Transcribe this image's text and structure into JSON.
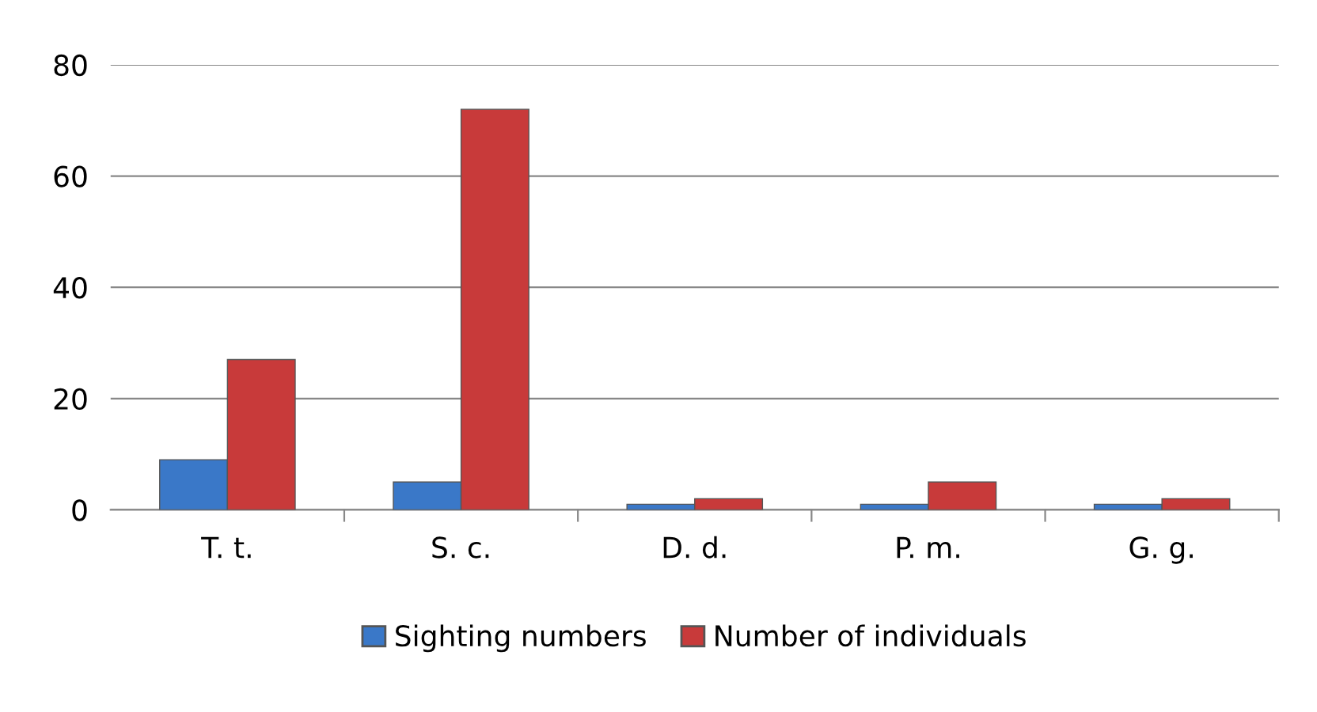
{
  "chart_data": {
    "type": "bar",
    "categories": [
      "T. t.",
      "S. c.",
      "D. d.",
      "P. m.",
      "G. g."
    ],
    "series": [
      {
        "name": "Sighting numbers",
        "color": "#3a78c8",
        "values": [
          9,
          5,
          1,
          1,
          1
        ]
      },
      {
        "name": "Number of individuals",
        "color": "#c83a3a",
        "values": [
          27,
          72,
          2,
          5,
          2
        ]
      }
    ],
    "ylim": [
      0,
      80
    ],
    "yticks": [
      0,
      20,
      40,
      60,
      80
    ],
    "grid": "y",
    "legend": "bottom"
  }
}
